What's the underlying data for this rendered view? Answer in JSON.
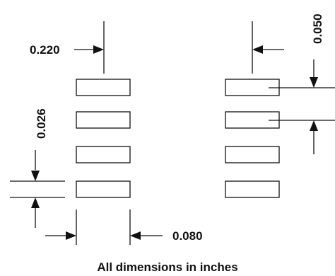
{
  "diagram": {
    "labels": {
      "pad_pitch_offset": "0.220",
      "edge_offset": "0.050",
      "pad_height": "0.026",
      "pad_width": "0.080",
      "footnote": "All dimensions in inches"
    },
    "pads": {
      "rows": 4,
      "columns": 2
    }
  }
}
